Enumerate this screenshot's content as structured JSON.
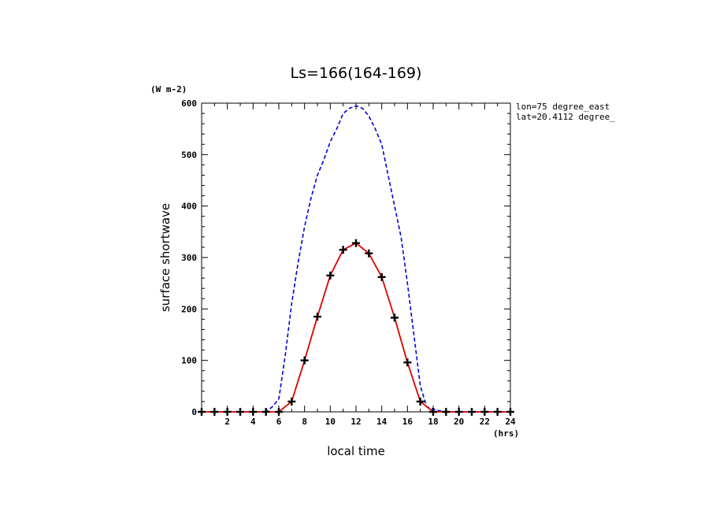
{
  "chart_data": {
    "type": "line",
    "title": "Ls=166(164-169)",
    "xlabel": "local time",
    "xunit": "(hrs)",
    "ylabel": "surface shortwave",
    "yunit": "(W m-2)",
    "xlim": [
      0,
      24
    ],
    "ylim": [
      0,
      600
    ],
    "x_ticks": [
      2,
      4,
      6,
      8,
      10,
      12,
      14,
      16,
      18,
      20,
      22,
      24
    ],
    "y_ticks": [
      0,
      100,
      200,
      300,
      400,
      500,
      600
    ],
    "annotations": [
      "lon=75 degree_east",
      "lat=20.4112 degree_"
    ],
    "colors": {
      "dashed": "#0000dd",
      "solid": "#dd0000",
      "markers": "#000000"
    },
    "series": [
      {
        "style": "dashed",
        "x": [
          0,
          1,
          2,
          3,
          4,
          5,
          5.5,
          6,
          6.5,
          7,
          7.5,
          8,
          8.5,
          9,
          9.5,
          10,
          10.5,
          11,
          11.5,
          12,
          12.5,
          13,
          13.5,
          14,
          14.5,
          15,
          15.5,
          16,
          16.5,
          17,
          17.5,
          18,
          18.5,
          19,
          19.5,
          20,
          21,
          22,
          23,
          24
        ],
        "y": [
          0,
          0,
          0,
          0,
          0,
          0,
          10,
          25,
          110,
          210,
          290,
          360,
          415,
          460,
          490,
          525,
          550,
          580,
          590,
          595,
          590,
          575,
          550,
          520,
          460,
          400,
          340,
          250,
          150,
          50,
          10,
          5,
          2,
          0,
          0,
          0,
          0,
          0,
          0,
          0
        ]
      },
      {
        "style": "solid",
        "x": [
          0,
          1,
          2,
          3,
          4,
          5,
          6,
          7,
          8,
          9,
          10,
          11,
          12,
          13,
          14,
          15,
          16,
          17,
          18,
          19,
          20,
          21,
          22,
          23,
          24
        ],
        "y": [
          0,
          0,
          0,
          0,
          0,
          0,
          0,
          20,
          100,
          185,
          265,
          315,
          328,
          308,
          262,
          183,
          96,
          20,
          0,
          0,
          0,
          0,
          0,
          0,
          0
        ]
      }
    ]
  }
}
